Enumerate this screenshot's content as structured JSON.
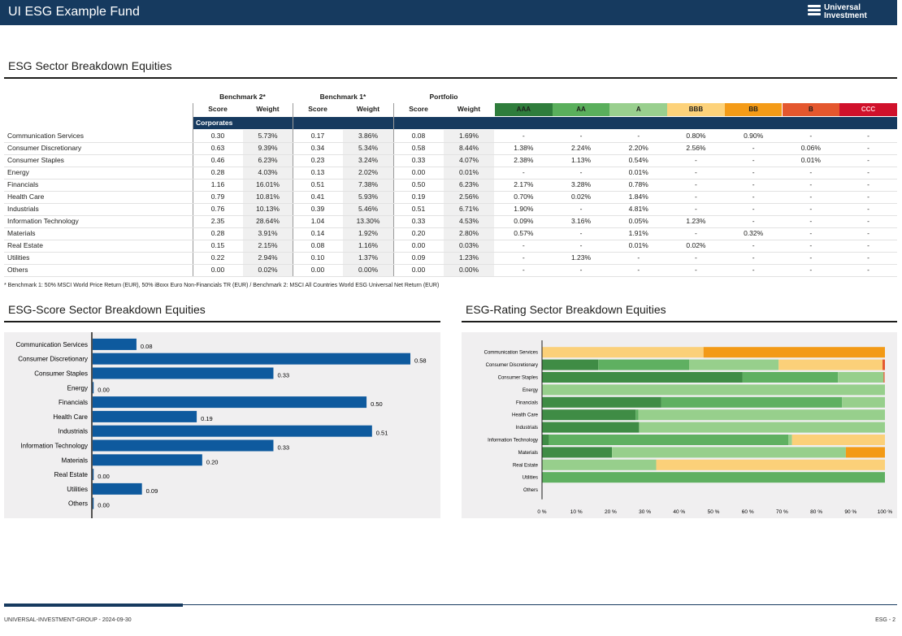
{
  "header": {
    "title": "UI ESG Example Fund",
    "logo_line1": "Universal",
    "logo_line2": "Investment"
  },
  "table": {
    "title": "ESG Sector Breakdown Equities",
    "group_headers": [
      "Benchmark 2*",
      "Benchmark 1*",
      "Portfolio"
    ],
    "col_score": "Score",
    "col_weight": "Weight",
    "ratings": [
      "AAA",
      "AA",
      "A",
      "BBB",
      "BB",
      "B",
      "CCC"
    ],
    "rating_colors": [
      "#2f7d3c",
      "#5aaf5c",
      "#99cf8e",
      "#fdd27a",
      "#f49b17",
      "#e4572e",
      "#d0112b"
    ],
    "section_label": "Corporates",
    "rows": [
      {
        "sector": "Communication Services",
        "b2s": "0.30",
        "b2w": "5.73%",
        "b1s": "0.17",
        "b1w": "3.86%",
        "ps": "0.08",
        "pw": "1.69%",
        "r": [
          "-",
          "-",
          "-",
          "0.80%",
          "0.90%",
          "-",
          "-"
        ]
      },
      {
        "sector": "Consumer Discretionary",
        "b2s": "0.63",
        "b2w": "9.39%",
        "b1s": "0.34",
        "b1w": "5.34%",
        "ps": "0.58",
        "pw": "8.44%",
        "r": [
          "1.38%",
          "2.24%",
          "2.20%",
          "2.56%",
          "-",
          "0.06%",
          "-"
        ]
      },
      {
        "sector": "Consumer Staples",
        "b2s": "0.46",
        "b2w": "6.23%",
        "b1s": "0.23",
        "b1w": "3.24%",
        "ps": "0.33",
        "pw": "4.07%",
        "r": [
          "2.38%",
          "1.13%",
          "0.54%",
          "-",
          "-",
          "0.01%",
          "-"
        ]
      },
      {
        "sector": "Energy",
        "b2s": "0.28",
        "b2w": "4.03%",
        "b1s": "0.13",
        "b1w": "2.02%",
        "ps": "0.00",
        "pw": "0.01%",
        "r": [
          "-",
          "-",
          "0.01%",
          "-",
          "-",
          "-",
          "-"
        ]
      },
      {
        "sector": "Financials",
        "b2s": "1.16",
        "b2w": "16.01%",
        "b1s": "0.51",
        "b1w": "7.38%",
        "ps": "0.50",
        "pw": "6.23%",
        "r": [
          "2.17%",
          "3.28%",
          "0.78%",
          "-",
          "-",
          "-",
          "-"
        ]
      },
      {
        "sector": "Health Care",
        "b2s": "0.79",
        "b2w": "10.81%",
        "b1s": "0.41",
        "b1w": "5.93%",
        "ps": "0.19",
        "pw": "2.56%",
        "r": [
          "0.70%",
          "0.02%",
          "1.84%",
          "-",
          "-",
          "-",
          "-"
        ]
      },
      {
        "sector": "Industrials",
        "b2s": "0.76",
        "b2w": "10.13%",
        "b1s": "0.39",
        "b1w": "5.46%",
        "ps": "0.51",
        "pw": "6.71%",
        "r": [
          "1.90%",
          "-",
          "4.81%",
          "-",
          "-",
          "-",
          "-"
        ]
      },
      {
        "sector": "Information Technology",
        "b2s": "2.35",
        "b2w": "28.64%",
        "b1s": "1.04",
        "b1w": "13.30%",
        "ps": "0.33",
        "pw": "4.53%",
        "r": [
          "0.09%",
          "3.16%",
          "0.05%",
          "1.23%",
          "-",
          "-",
          "-"
        ]
      },
      {
        "sector": "Materials",
        "b2s": "0.28",
        "b2w": "3.91%",
        "b1s": "0.14",
        "b1w": "1.92%",
        "ps": "0.20",
        "pw": "2.80%",
        "r": [
          "0.57%",
          "-",
          "1.91%",
          "-",
          "0.32%",
          "-",
          "-"
        ]
      },
      {
        "sector": "Real Estate",
        "b2s": "0.15",
        "b2w": "2.15%",
        "b1s": "0.08",
        "b1w": "1.16%",
        "ps": "0.00",
        "pw": "0.03%",
        "r": [
          "-",
          "-",
          "0.01%",
          "0.02%",
          "-",
          "-",
          "-"
        ]
      },
      {
        "sector": "Utilities",
        "b2s": "0.22",
        "b2w": "2.94%",
        "b1s": "0.10",
        "b1w": "1.37%",
        "ps": "0.09",
        "pw": "1.23%",
        "r": [
          "-",
          "1.23%",
          "-",
          "-",
          "-",
          "-",
          "-"
        ]
      },
      {
        "sector": "Others",
        "b2s": "0.00",
        "b2w": "0.02%",
        "b1s": "0.00",
        "b1w": "0.00%",
        "ps": "0.00",
        "pw": "0.00%",
        "r": [
          "-",
          "-",
          "-",
          "-",
          "-",
          "-",
          "-"
        ]
      }
    ],
    "footnote": "* Benchmark 1: 50% MSCI World Price Return (EUR), 50% iBoxx Euro Non-Financials TR (EUR) / Benchmark 2:  MSCI All Countries World ESG Universal Net Return (EUR)"
  },
  "chart_data": [
    {
      "type": "bar",
      "orientation": "horizontal",
      "title": "ESG-Score Sector Breakdown Equities",
      "categories": [
        "Communication Services",
        "Consumer Discretionary",
        "Consumer Staples",
        "Energy",
        "Financials",
        "Health Care",
        "Industrials",
        "Information Technology",
        "Materials",
        "Real Estate",
        "Utilities",
        "Others"
      ],
      "values": [
        0.08,
        0.58,
        0.33,
        0.0,
        0.5,
        0.19,
        0.51,
        0.33,
        0.2,
        0.0,
        0.09,
        0.0
      ],
      "labels": [
        "0.08",
        "0.58",
        "0.33",
        "0.00",
        "0.50",
        "0.19",
        "0.51",
        "0.33",
        "0.20",
        "0.00",
        "0.09",
        "0.00"
      ],
      "xlim": [
        0,
        0.65
      ],
      "color": "#0e5a9e"
    },
    {
      "type": "bar",
      "orientation": "horizontal",
      "stacked": "percent",
      "title": "ESG-Rating Sector Breakdown Equities",
      "categories": [
        "Communication Services",
        "Consumer Discretionary",
        "Consumer Staples",
        "Energy",
        "Financials",
        "Health Care",
        "Industrials",
        "Information Technology",
        "Materials",
        "Real Estate",
        "Utilities",
        "Others"
      ],
      "series": [
        {
          "name": "AAA",
          "color": "#3f8c45",
          "values": [
            0,
            16.4,
            58.5,
            0,
            34.8,
            27.3,
            28.3,
            2.0,
            20.4,
            0,
            0,
            0
          ]
        },
        {
          "name": "AA",
          "color": "#5fb061",
          "values": [
            0,
            26.5,
            27.8,
            0,
            52.7,
            0.8,
            0,
            69.8,
            0,
            0,
            100,
            0
          ]
        },
        {
          "name": "A",
          "color": "#97cf8c",
          "values": [
            0,
            26.1,
            13.3,
            100,
            12.5,
            71.9,
            71.7,
            1.1,
            68.2,
            33.3,
            0,
            0
          ]
        },
        {
          "name": "BBB",
          "color": "#fbd079",
          "values": [
            47.1,
            30.3,
            0,
            0,
            0,
            0,
            0,
            27.1,
            0,
            66.7,
            0,
            0
          ]
        },
        {
          "name": "BB",
          "color": "#f39a16",
          "values": [
            52.9,
            0,
            0,
            0,
            0,
            0,
            0,
            0,
            11.4,
            0,
            0,
            0
          ]
        },
        {
          "name": "B",
          "color": "#e4572e",
          "values": [
            0,
            0.7,
            0.3,
            0,
            0,
            0,
            0,
            0,
            0,
            0,
            0,
            0
          ]
        }
      ],
      "xticks": [
        "0 %",
        "10 %",
        "20 %",
        "30 %",
        "40 %",
        "50 %",
        "60 %",
        "70 %",
        "80 %",
        "90 %",
        "100 %"
      ],
      "xlim": [
        0,
        100
      ]
    }
  ],
  "footer": {
    "left": "UNIVERSAL-INVESTMENT-GROUP - 2024-09-30",
    "right": "ESG - 2"
  }
}
